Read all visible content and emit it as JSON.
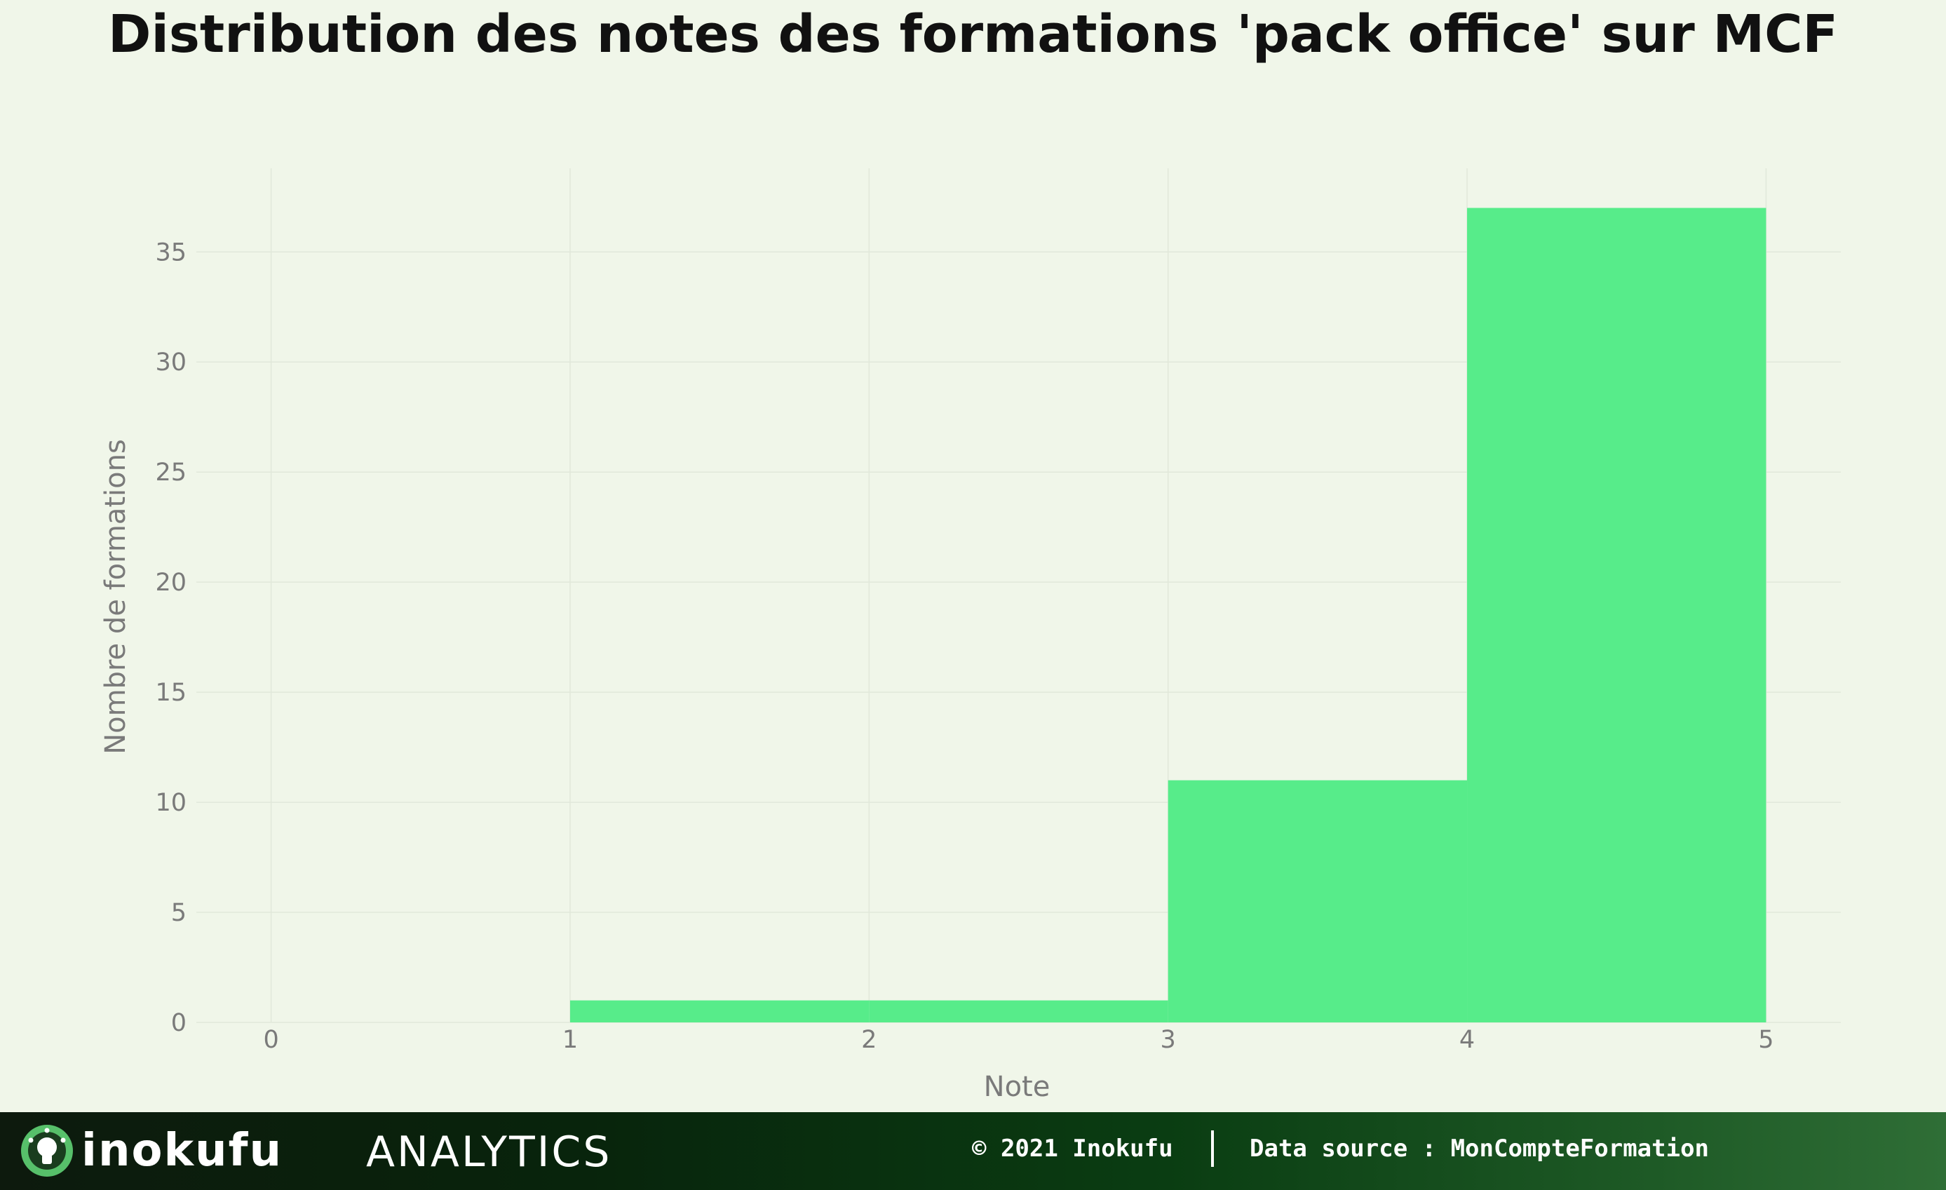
{
  "chart_data": {
    "type": "bar",
    "title": "Distribution des notes des formations 'pack office' sur MCF",
    "xlabel": "Note",
    "ylabel": "Nombre de formations",
    "bins": [
      {
        "x0": 0,
        "x1": 1,
        "count": 0
      },
      {
        "x0": 1,
        "x1": 2,
        "count": 1
      },
      {
        "x0": 2,
        "x1": 3,
        "count": 1
      },
      {
        "x0": 3,
        "x1": 4,
        "count": 11
      },
      {
        "x0": 4,
        "x1": 5,
        "count": 37
      }
    ],
    "xticks": [
      "0",
      "1",
      "2",
      "3",
      "4",
      "5"
    ],
    "yticks": [
      "0",
      "5",
      "10",
      "15",
      "20",
      "25",
      "30",
      "35"
    ],
    "xlim": [
      -0.25,
      5.25
    ],
    "ylim": [
      0,
      38.8
    ],
    "grid": true,
    "bar_color": "#57ec8a"
  },
  "footer": {
    "brand_name": "inokufu",
    "brand_suffix": "ANALYTICS",
    "copyright": "© 2021 Inokufu",
    "data_source": "Data source : MonCompteFormation",
    "logo_icon": "lightbulb-icon"
  }
}
